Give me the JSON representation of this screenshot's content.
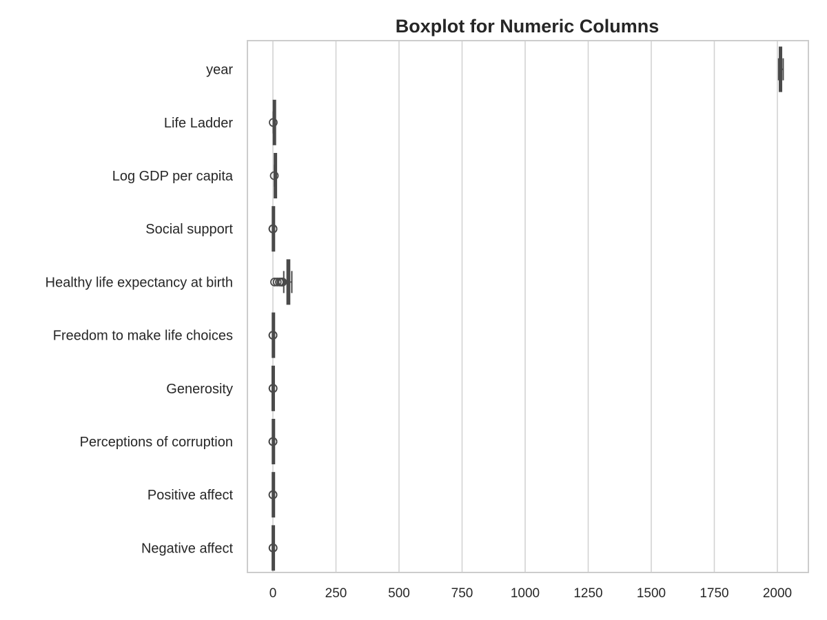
{
  "chart_data": {
    "type": "boxplot",
    "title": "Boxplot for Numeric Columns",
    "orientation": "horizontal",
    "xlim": [
      -100,
      2130
    ],
    "xticks": [
      0,
      250,
      500,
      750,
      1000,
      1250,
      1500,
      1750,
      2000
    ],
    "xtick_labels": [
      "0",
      "250",
      "500",
      "750",
      "1000",
      "1250",
      "1500",
      "1750",
      "2000"
    ],
    "grid": "vertical",
    "box_color": "#4a4a4a",
    "categories": [
      "year",
      "Life Ladder",
      "Log GDP per capita",
      "Social support",
      "Healthy life expectancy at birth",
      "Freedom to make life choices",
      "Generosity",
      "Perceptions of corruption",
      "Positive affect",
      "Negative affect"
    ],
    "boxes": [
      {
        "label": "year",
        "whisker_low": 2005,
        "q1": 2011,
        "median": 2015,
        "q3": 2019,
        "whisker_high": 2023,
        "outliers": []
      },
      {
        "label": "Life Ladder",
        "whisker_low": 1.3,
        "q1": 4.6,
        "median": 5.4,
        "q3": 6.2,
        "whisker_high": 8.0,
        "outliers": [
          1.3
        ]
      },
      {
        "label": "Log GDP per capita",
        "whisker_low": 5.5,
        "q1": 8.5,
        "median": 9.5,
        "q3": 10.4,
        "whisker_high": 11.7,
        "outliers": [
          5.5
        ]
      },
      {
        "label": "Social support",
        "whisker_low": 0.48,
        "q1": 0.74,
        "median": 0.83,
        "q3": 0.9,
        "whisker_high": 0.99,
        "outliers": [
          0.23,
          0.3,
          0.4
        ]
      },
      {
        "label": "Healthy life expectancy at birth",
        "whisker_low": 43,
        "q1": 59,
        "median": 65,
        "q3": 69,
        "whisker_high": 75,
        "outliers": [
          6.7,
          17,
          26,
          32,
          35,
          38
        ]
      },
      {
        "label": "Freedom to make life choices",
        "whisker_low": 0.4,
        "q1": 0.66,
        "median": 0.77,
        "q3": 0.86,
        "whisker_high": 0.99,
        "outliers": [
          0.23,
          0.3,
          0.36
        ]
      },
      {
        "label": "Generosity",
        "whisker_low": -0.35,
        "q1": -0.11,
        "median": -0.02,
        "q3": 0.09,
        "whisker_high": 0.4,
        "outliers": [
          0.45,
          0.55,
          0.7
        ]
      },
      {
        "label": "Perceptions of corruption",
        "whisker_low": 0.45,
        "q1": 0.69,
        "median": 0.8,
        "q3": 0.87,
        "whisker_high": 0.98,
        "outliers": [
          0.04,
          0.2,
          0.3
        ]
      },
      {
        "label": "Positive affect",
        "whisker_low": 0.3,
        "q1": 0.57,
        "median": 0.66,
        "q3": 0.74,
        "whisker_high": 0.88,
        "outliers": [
          0.18,
          0.25
        ]
      },
      {
        "label": "Negative affect",
        "whisker_low": 0.08,
        "q1": 0.21,
        "median": 0.26,
        "q3": 0.32,
        "whisker_high": 0.48,
        "outliers": [
          0.52,
          0.6,
          0.7
        ]
      }
    ]
  }
}
